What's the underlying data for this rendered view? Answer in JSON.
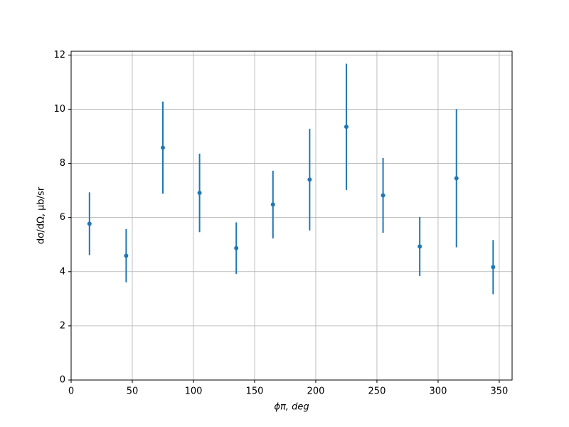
{
  "chart_data": {
    "type": "errorbar",
    "xlabel": "ϕπ, deg",
    "ylabel": "dσ/dΩ, μb/sr",
    "x": [
      15,
      45,
      75,
      105,
      135,
      165,
      195,
      225,
      255,
      285,
      315,
      345
    ],
    "series": [
      {
        "color": "#1f77b4",
        "values": [
          5.77,
          4.59,
          8.58,
          6.91,
          4.87,
          6.48,
          7.4,
          9.35,
          6.82,
          4.93,
          7.45,
          4.17
        ],
        "errors": [
          1.16,
          0.98,
          1.7,
          1.45,
          0.95,
          1.25,
          1.88,
          2.33,
          1.38,
          1.09,
          2.55,
          1.0
        ]
      }
    ],
    "xlim": [
      0,
      360.5
    ],
    "ylim": [
      0,
      12.14
    ],
    "xticks": [
      0,
      50,
      100,
      150,
      200,
      250,
      300,
      350
    ],
    "yticks": [
      0,
      2,
      4,
      6,
      8,
      10,
      12
    ],
    "grid": true
  }
}
